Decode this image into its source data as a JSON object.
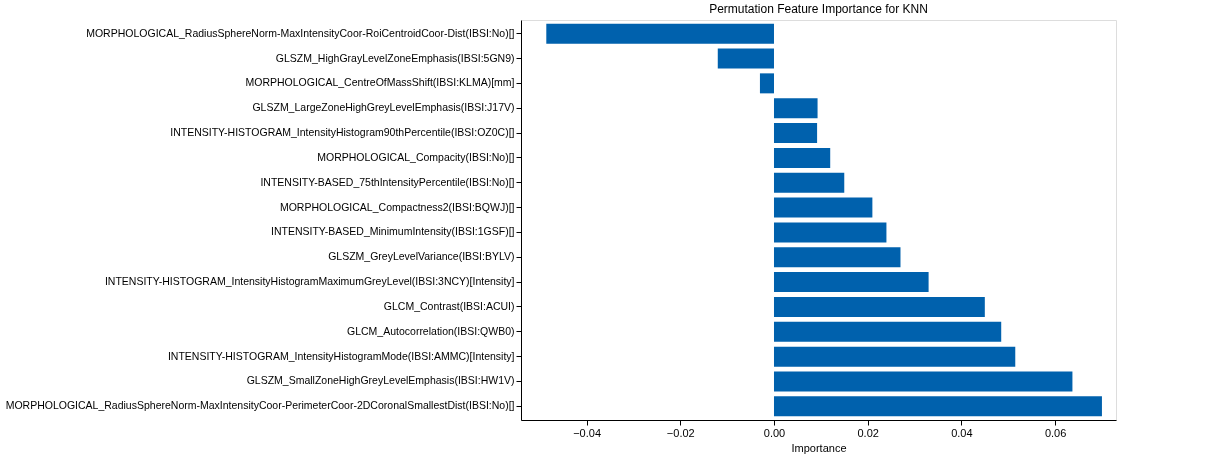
{
  "chart_data": {
    "type": "bar",
    "orientation": "horizontal",
    "title": "Permutation Feature Importance for KNN",
    "xlabel": "Importance",
    "categories": [
      "MORPHOLOGICAL_RadiusSphereNorm-MaxIntensityCoor-RoiCentroidCoor-Dist(IBSI:No)[]",
      "GLSZM_HighGrayLevelZoneEmphasis(IBSI:5GN9)",
      "MORPHOLOGICAL_CentreOfMassShift(IBSI:KLMA)[mm]",
      "GLSZM_LargeZoneHighGreyLevelEmphasis(IBSI:J17V)",
      "INTENSITY-HISTOGRAM_IntensityHistogram90thPercentile(IBSI:OZ0C)[]",
      "MORPHOLOGICAL_Compacity(IBSI:No)[]",
      "INTENSITY-BASED_75thIntensityPercentile(IBSI:No)[]",
      "MORPHOLOGICAL_Compactness2(IBSI:BQWJ)[]",
      "INTENSITY-BASED_MinimumIntensity(IBSI:1GSF)[]",
      "GLSZM_GreyLevelVariance(IBSI:BYLV)",
      "INTENSITY-HISTOGRAM_IntensityHistogramMaximumGreyLevel(IBSI:3NCY)[Intensity]",
      "GLCM_Contrast(IBSI:ACUI)",
      "GLCM_Autocorrelation(IBSI:QWB0)",
      "INTENSITY-HISTOGRAM_IntensityHistogramMode(IBSI:AMMC)[Intensity]",
      "GLSZM_SmallZoneHighGreyLevelEmphasis(IBSI:HW1V)",
      "MORPHOLOGICAL_RadiusSphereNorm-MaxIntensityCoor-PerimeterCoor-2DCoronalSmallestDist(IBSI:No)[]"
    ],
    "values": [
      -0.0486,
      -0.012,
      -0.003,
      0.0093,
      0.0092,
      0.012,
      0.015,
      0.021,
      0.024,
      0.027,
      0.033,
      0.045,
      0.0485,
      0.0515,
      0.0637,
      0.07
    ],
    "color": "#0061ad",
    "xlim": [
      -0.054,
      0.073
    ],
    "xticks": [
      {
        "value": -0.04,
        "label": "−0.04"
      },
      {
        "value": -0.02,
        "label": "−0.02"
      },
      {
        "value": 0,
        "label": "0.00"
      },
      {
        "value": 0.02,
        "label": "0.02"
      },
      {
        "value": 0.04,
        "label": "0.04"
      },
      {
        "value": 0.06,
        "label": "0.06"
      }
    ],
    "grid": false
  }
}
